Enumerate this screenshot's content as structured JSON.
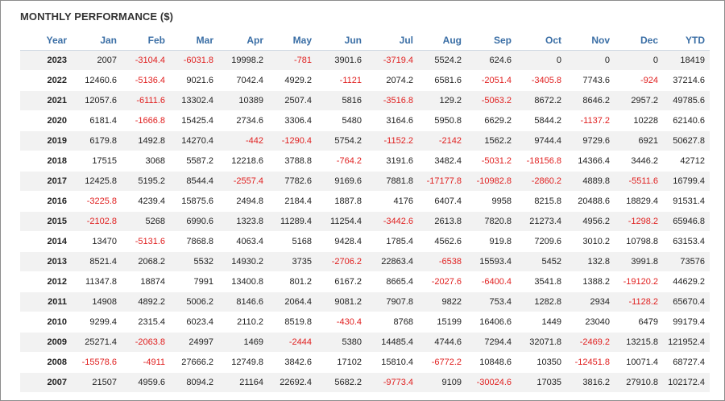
{
  "title": "MONTHLY PERFORMANCE ($)",
  "colors": {
    "header_text": "#3a6ea5",
    "negative": "#e02020",
    "row_alt": "#f2f2f2"
  },
  "columns": [
    "Year",
    "Jan",
    "Feb",
    "Mar",
    "Apr",
    "May",
    "Jun",
    "Jul",
    "Aug",
    "Sep",
    "Oct",
    "Nov",
    "Dec",
    "YTD"
  ],
  "rows": [
    [
      "2023",
      "2007",
      "-3104.4",
      "-6031.8",
      "19998.2",
      "-781",
      "3901.6",
      "-3719.4",
      "5524.2",
      "624.6",
      "0",
      "0",
      "0",
      "18419"
    ],
    [
      "2022",
      "12460.6",
      "-5136.4",
      "9021.6",
      "7042.4",
      "4929.2",
      "-1121",
      "2074.2",
      "6581.6",
      "-2051.4",
      "-3405.8",
      "7743.6",
      "-924",
      "37214.6"
    ],
    [
      "2021",
      "12057.6",
      "-6111.6",
      "13302.4",
      "10389",
      "2507.4",
      "5816",
      "-3516.8",
      "129.2",
      "-5063.2",
      "8672.2",
      "8646.2",
      "2957.2",
      "49785.6"
    ],
    [
      "2020",
      "6181.4",
      "-1666.8",
      "15425.4",
      "2734.6",
      "3306.4",
      "5480",
      "3164.6",
      "5950.8",
      "6629.2",
      "5844.2",
      "-1137.2",
      "10228",
      "62140.6"
    ],
    [
      "2019",
      "6179.8",
      "1492.8",
      "14270.4",
      "-442",
      "-1290.4",
      "5754.2",
      "-1152.2",
      "-2142",
      "1562.2",
      "9744.4",
      "9729.6",
      "6921",
      "50627.8"
    ],
    [
      "2018",
      "17515",
      "3068",
      "5587.2",
      "12218.6",
      "3788.8",
      "-764.2",
      "3191.6",
      "3482.4",
      "-5031.2",
      "-18156.8",
      "14366.4",
      "3446.2",
      "42712"
    ],
    [
      "2017",
      "12425.8",
      "5195.2",
      "8544.4",
      "-2557.4",
      "7782.6",
      "9169.6",
      "7881.8",
      "-17177.8",
      "-10982.8",
      "-2860.2",
      "4889.8",
      "-5511.6",
      "16799.4"
    ],
    [
      "2016",
      "-3225.8",
      "4239.4",
      "15875.6",
      "2494.8",
      "2184.4",
      "1887.8",
      "4176",
      "6407.4",
      "9958",
      "8215.8",
      "20488.6",
      "18829.4",
      "91531.4"
    ],
    [
      "2015",
      "-2102.8",
      "5268",
      "6990.6",
      "1323.8",
      "11289.4",
      "11254.4",
      "-3442.6",
      "2613.8",
      "7820.8",
      "21273.4",
      "4956.2",
      "-1298.2",
      "65946.8"
    ],
    [
      "2014",
      "13470",
      "-5131.6",
      "7868.8",
      "4063.4",
      "5168",
      "9428.4",
      "1785.4",
      "4562.6",
      "919.8",
      "7209.6",
      "3010.2",
      "10798.8",
      "63153.4"
    ],
    [
      "2013",
      "8521.4",
      "2068.2",
      "5532",
      "14930.2",
      "3735",
      "-2706.2",
      "22863.4",
      "-6538",
      "15593.4",
      "5452",
      "132.8",
      "3991.8",
      "73576"
    ],
    [
      "2012",
      "11347.8",
      "18874",
      "7991",
      "13400.8",
      "801.2",
      "6167.2",
      "8665.4",
      "-2027.6",
      "-6400.4",
      "3541.8",
      "1388.2",
      "-19120.2",
      "44629.2"
    ],
    [
      "2011",
      "14908",
      "4892.2",
      "5006.2",
      "8146.6",
      "2064.4",
      "9081.2",
      "7907.8",
      "9822",
      "753.4",
      "1282.8",
      "2934",
      "-1128.2",
      "65670.4"
    ],
    [
      "2010",
      "9299.4",
      "2315.4",
      "6023.4",
      "2110.2",
      "8519.8",
      "-430.4",
      "8768",
      "15199",
      "16406.6",
      "1449",
      "23040",
      "6479",
      "99179.4"
    ],
    [
      "2009",
      "25271.4",
      "-2063.8",
      "24997",
      "1469",
      "-2444",
      "5380",
      "14485.4",
      "4744.6",
      "7294.4",
      "32071.8",
      "-2469.2",
      "13215.8",
      "121952.4"
    ],
    [
      "2008",
      "-15578.6",
      "-4911",
      "27666.2",
      "12749.8",
      "3842.6",
      "17102",
      "15810.4",
      "-6772.2",
      "10848.6",
      "10350",
      "-12451.8",
      "10071.4",
      "68727.4"
    ],
    [
      "2007",
      "21507",
      "4959.6",
      "8094.2",
      "21164",
      "22692.4",
      "5682.2",
      "-9773.4",
      "9109",
      "-30024.6",
      "17035",
      "3816.2",
      "27910.8",
      "102172.4"
    ]
  ]
}
